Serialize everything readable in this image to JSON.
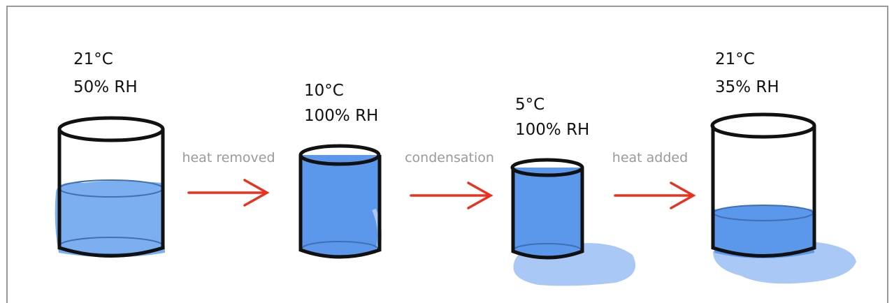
{
  "stages": [
    {
      "temperature": "21°C",
      "humidity": "50% RH"
    },
    {
      "temperature": "10°C",
      "humidity": "100% RH"
    },
    {
      "temperature": "5°C",
      "humidity": "100% RH"
    },
    {
      "temperature": "21°C",
      "humidity": "35% RH"
    }
  ],
  "transitions": [
    "heat removed",
    "condensation",
    "heat added"
  ]
}
